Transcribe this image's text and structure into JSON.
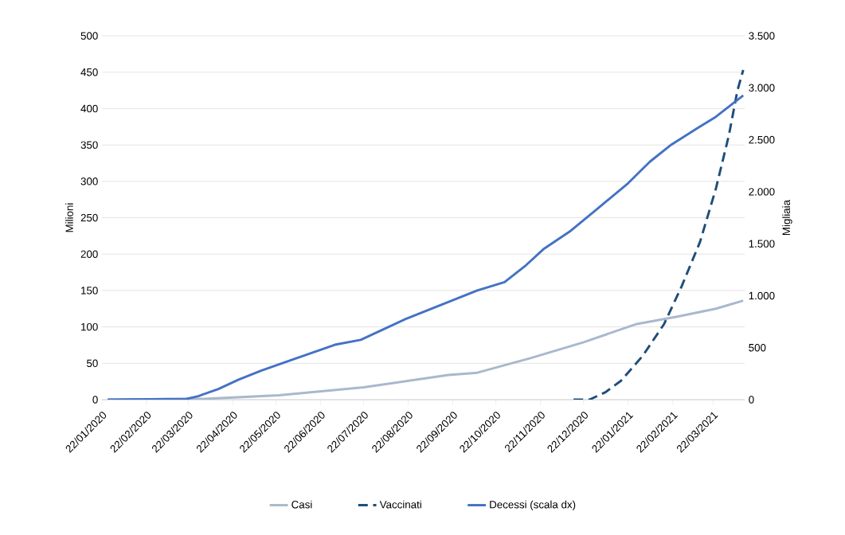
{
  "chart_data": {
    "type": "line",
    "ylabel": "Milioni",
    "y2label": "Migliaia",
    "xlim": [
      "2020-01-22",
      "2021-04-13"
    ],
    "xticks": [
      {
        "value": "2020-01-22",
        "label": "22/01/2020"
      },
      {
        "value": "2020-02-22",
        "label": "22/02/2020"
      },
      {
        "value": "2020-03-22",
        "label": "22/03/2020"
      },
      {
        "value": "2020-04-22",
        "label": "22/04/2020"
      },
      {
        "value": "2020-05-22",
        "label": "22/05/2020"
      },
      {
        "value": "2020-06-22",
        "label": "22/06/2020"
      },
      {
        "value": "2020-07-22",
        "label": "22/07/2020"
      },
      {
        "value": "2020-08-22",
        "label": "22/08/2020"
      },
      {
        "value": "2020-09-22",
        "label": "22/09/2020"
      },
      {
        "value": "2020-10-22",
        "label": "22/10/2020"
      },
      {
        "value": "2020-11-22",
        "label": "22/11/2020"
      },
      {
        "value": "2020-12-22",
        "label": "22/12/2020"
      },
      {
        "value": "2021-01-22",
        "label": "22/01/2021"
      },
      {
        "value": "2021-02-22",
        "label": "22/02/2021"
      },
      {
        "value": "2021-03-22",
        "label": "22/03/2021"
      }
    ],
    "ylim": [
      0,
      500
    ],
    "yticks": [
      0,
      50,
      100,
      150,
      200,
      250,
      300,
      350,
      400,
      450,
      500
    ],
    "y2lim": [
      0,
      3500
    ],
    "y2ticks": [
      0,
      500,
      {
        "value": 1000,
        "label": "1.000"
      },
      {
        "value": 1500,
        "label": "1.500"
      },
      {
        "value": 2000,
        "label": "2.000"
      },
      {
        "value": 2500,
        "label": "2.500"
      },
      {
        "value": 3000,
        "label": "3.000"
      },
      {
        "value": 3500,
        "label": "3.500"
      }
    ],
    "grid": "y",
    "legend": "bottom",
    "marker": "none",
    "series": [
      {
        "name": "Casi",
        "color": "#a9b8cc",
        "line_style": "solid",
        "x": [
          "2020-01-26",
          "2020-04-02",
          "2020-05-24",
          "2020-07-22",
          "2020-09-19",
          "2020-10-09",
          "2020-11-15",
          "2020-12-22",
          "2021-01-28",
          "2021-02-25",
          "2021-03-24",
          "2021-04-12"
        ],
        "values": [
          0,
          1,
          6,
          17,
          34,
          37,
          57,
          79,
          104,
          114,
          125,
          136
        ]
      },
      {
        "name": "Vaccinati",
        "color": "#1f4e79",
        "line_style": "dashed",
        "x": [
          "2020-12-15",
          "2020-12-26",
          "2021-01-06",
          "2021-01-17",
          "2021-02-01",
          "2021-02-16",
          "2021-02-28",
          "2021-03-13",
          "2021-03-24",
          "2021-04-02",
          "2021-04-08",
          "2021-04-12"
        ],
        "values": [
          0,
          0,
          10,
          26,
          60,
          104,
          155,
          217,
          290,
          363,
          425,
          453
        ]
      },
      {
        "name": "Decessi (scala dx)",
        "color": "#4472c4",
        "line_style": "solid",
        "axis": "y2",
        "x": [
          "2020-01-26",
          "2020-03-21",
          "2020-03-29",
          "2020-04-12",
          "2020-04-26",
          "2020-05-12",
          "2020-06-05",
          "2020-07-02",
          "2020-07-20",
          "2020-08-21",
          "2020-10-09",
          "2020-10-28",
          "2020-11-12",
          "2020-11-24",
          "2020-12-13",
          "2020-12-31",
          "2021-01-22",
          "2021-02-06",
          "2021-02-21",
          "2021-03-12",
          "2021-03-24",
          "2021-04-12"
        ],
        "values": [
          0,
          8,
          34,
          103,
          193,
          280,
          398,
          528,
          575,
          781,
          1050,
          1130,
          1294,
          1447,
          1624,
          1830,
          2083,
          2288,
          2453,
          2619,
          2721,
          2926
        ]
      }
    ]
  }
}
